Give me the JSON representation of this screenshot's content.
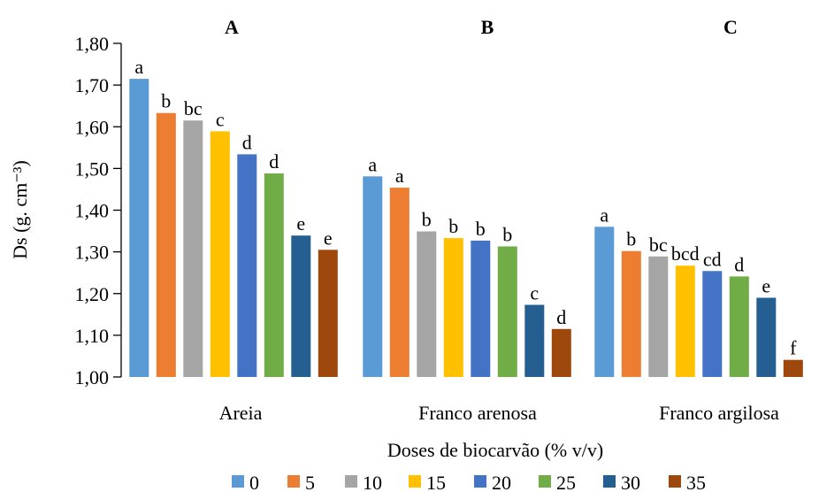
{
  "chart_data": {
    "type": "bar",
    "xlabel": "Doses de biocarvão (% v/v)",
    "ylabel": "Ds (g. cm⁻³)",
    "ylim": [
      1.0,
      1.8
    ],
    "ytick_step": 0.1,
    "ytick_labels": [
      "1,00",
      "1,10",
      "1,20",
      "1,30",
      "1,40",
      "1,50",
      "1,60",
      "1,70",
      "1,80"
    ],
    "grid": false,
    "legend_position": "bottom",
    "categories": [
      "Areia",
      "Franco arenosa",
      "Franco argilosa"
    ],
    "panel_labels": [
      "A",
      "B",
      "C"
    ],
    "series": [
      {
        "name": "0",
        "color": "#5B9BD5",
        "values": [
          1.715,
          1.481,
          1.36
        ],
        "letters": [
          "a",
          "a",
          "a"
        ]
      },
      {
        "name": "5",
        "color": "#ED7D31",
        "values": [
          1.633,
          1.454,
          1.302
        ],
        "letters": [
          "b",
          "a",
          "b"
        ]
      },
      {
        "name": "10",
        "color": "#A5A5A5",
        "values": [
          1.615,
          1.349,
          1.289
        ],
        "letters": [
          "bc",
          "b",
          "bc"
        ]
      },
      {
        "name": "15",
        "color": "#FFC000",
        "values": [
          1.589,
          1.333,
          1.267
        ],
        "letters": [
          "c",
          "b",
          "bcd"
        ]
      },
      {
        "name": "20",
        "color": "#4472C4",
        "values": [
          1.534,
          1.327,
          1.254
        ],
        "letters": [
          "d",
          "b",
          "cd"
        ]
      },
      {
        "name": "25",
        "color": "#70AD47",
        "values": [
          1.488,
          1.313,
          1.241
        ],
        "letters": [
          "d",
          "b",
          "d"
        ]
      },
      {
        "name": "30",
        "color": "#255E91",
        "values": [
          1.339,
          1.173,
          1.19
        ],
        "letters": [
          "e",
          "c",
          "e"
        ]
      },
      {
        "name": "35",
        "color": "#9E480E",
        "values": [
          1.305,
          1.115,
          1.041
        ],
        "letters": [
          "e",
          "d",
          "f"
        ]
      }
    ]
  }
}
